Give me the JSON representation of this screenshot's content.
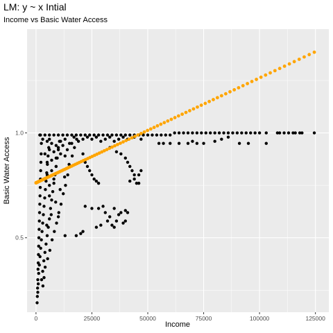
{
  "chart_data": {
    "type": "scatter",
    "title": "LM: y ~ x Intial",
    "subtitle": "Income vs Basic Water Access",
    "xlabel": "Income",
    "ylabel": "Basic Water Access",
    "xlim": [
      -4000,
      131000
    ],
    "ylim": [
      0.145,
      1.495
    ],
    "x_ticks": [
      0,
      25000,
      50000,
      75000,
      100000,
      125000
    ],
    "x_tick_labels": [
      "0",
      "25000",
      "50000",
      "75000",
      "100000",
      "125000"
    ],
    "y_ticks": [
      0.5,
      1.0
    ],
    "y_tick_labels": [
      "0.5",
      "1.0"
    ],
    "grid": true,
    "legend": "none",
    "colors": {
      "panel": "#ebebeb",
      "grid": "#ffffff",
      "observed": "#000000",
      "fitted": "#ffa500"
    },
    "series": [
      {
        "kind": "observed",
        "color": "#000000",
        "points": [
          [
            500,
            0.19
          ],
          [
            600,
            0.22
          ],
          [
            700,
            0.26
          ],
          [
            800,
            0.3
          ],
          [
            900,
            0.35
          ],
          [
            1000,
            0.38
          ],
          [
            1100,
            0.42
          ],
          [
            1200,
            0.46
          ],
          [
            1300,
            0.5
          ],
          [
            1400,
            0.54
          ],
          [
            1500,
            0.58
          ],
          [
            1600,
            0.62
          ],
          [
            1700,
            0.66
          ],
          [
            1800,
            0.7
          ],
          [
            1900,
            0.74
          ],
          [
            2000,
            0.78
          ],
          [
            2100,
            0.82
          ],
          [
            2200,
            0.86
          ],
          [
            2300,
            0.9
          ],
          [
            2400,
            0.95
          ],
          [
            800,
            0.24
          ],
          [
            1000,
            0.28
          ],
          [
            1200,
            0.33
          ],
          [
            1500,
            0.37
          ],
          [
            1800,
            0.41
          ],
          [
            2100,
            0.45
          ],
          [
            2400,
            0.49
          ],
          [
            2700,
            0.53
          ],
          [
            3000,
            0.57
          ],
          [
            3300,
            0.61
          ],
          [
            3600,
            0.65
          ],
          [
            3900,
            0.69
          ],
          [
            4200,
            0.73
          ],
          [
            4500,
            0.77
          ],
          [
            4800,
            0.81
          ],
          [
            5100,
            0.85
          ],
          [
            5400,
            0.89
          ],
          [
            5700,
            0.93
          ],
          [
            6000,
            0.97
          ],
          [
            1700,
            0.99
          ],
          [
            2500,
            0.3
          ],
          [
            3000,
            0.34
          ],
          [
            3500,
            0.39
          ],
          [
            4000,
            0.43
          ],
          [
            4500,
            0.47
          ],
          [
            5000,
            0.51
          ],
          [
            5500,
            0.55
          ],
          [
            6000,
            0.59
          ],
          [
            6500,
            0.64
          ],
          [
            7000,
            0.68
          ],
          [
            7500,
            0.72
          ],
          [
            8000,
            0.76
          ],
          [
            8500,
            0.8
          ],
          [
            9000,
            0.84
          ],
          [
            9500,
            0.88
          ],
          [
            10000,
            0.92
          ],
          [
            10500,
            0.96
          ],
          [
            3100,
            0.27
          ],
          [
            3600,
            0.31
          ],
          [
            4100,
            0.36
          ],
          [
            5200,
            0.4
          ],
          [
            6200,
            0.44
          ],
          [
            7200,
            0.49
          ],
          [
            8200,
            0.53
          ],
          [
            9200,
            0.57
          ],
          [
            10200,
            0.62
          ],
          [
            11200,
            0.66
          ],
          [
            12200,
            0.71
          ],
          [
            13200,
            0.75
          ],
          [
            14200,
            0.8
          ],
          [
            15200,
            0.84
          ],
          [
            16200,
            0.89
          ],
          [
            17200,
            0.93
          ],
          [
            18200,
            0.97
          ],
          [
            4800,
            0.56
          ],
          [
            6800,
            0.61
          ],
          [
            8800,
            0.67
          ],
          [
            10800,
            0.73
          ],
          [
            12800,
            0.79
          ],
          [
            14800,
            0.85
          ],
          [
            2000,
            0.99
          ],
          [
            4000,
            0.99
          ],
          [
            6000,
            0.99
          ],
          [
            8000,
            0.99
          ],
          [
            10000,
            0.99
          ],
          [
            12000,
            0.99
          ],
          [
            14000,
            0.99
          ],
          [
            16000,
            0.99
          ],
          [
            18000,
            0.99
          ],
          [
            20000,
            0.99
          ],
          [
            22000,
            0.99
          ],
          [
            24000,
            0.99
          ],
          [
            26000,
            0.99
          ],
          [
            28000,
            0.99
          ],
          [
            30000,
            0.99
          ],
          [
            32000,
            0.99
          ],
          [
            34000,
            0.99
          ],
          [
            36000,
            0.99
          ],
          [
            38000,
            0.99
          ],
          [
            40000,
            0.99
          ],
          [
            42000,
            0.99
          ],
          [
            44000,
            0.99
          ],
          [
            46000,
            0.99
          ],
          [
            48000,
            0.99
          ],
          [
            50000,
            0.99
          ],
          [
            52000,
            0.99
          ],
          [
            54000,
            0.99
          ],
          [
            56000,
            0.99
          ],
          [
            58000,
            0.99
          ],
          [
            60000,
            0.99
          ],
          [
            62000,
            1.0
          ],
          [
            64000,
            1.0
          ],
          [
            66000,
            1.0
          ],
          [
            68000,
            1.0
          ],
          [
            70000,
            1.0
          ],
          [
            72000,
            1.0
          ],
          [
            74000,
            1.0
          ],
          [
            76000,
            1.0
          ],
          [
            78000,
            1.0
          ],
          [
            80000,
            1.0
          ],
          [
            82000,
            1.0
          ],
          [
            84000,
            1.0
          ],
          [
            86000,
            1.0
          ],
          [
            88000,
            1.0
          ],
          [
            90000,
            1.0
          ],
          [
            92000,
            1.0
          ],
          [
            94000,
            1.0
          ],
          [
            96000,
            1.0
          ],
          [
            98000,
            1.0
          ],
          [
            100000,
            1.0
          ],
          [
            103000,
            1.0
          ],
          [
            108000,
            1.0
          ],
          [
            109000,
            1.0
          ],
          [
            111000,
            1.0
          ],
          [
            113000,
            1.0
          ],
          [
            115000,
            1.0
          ],
          [
            116000,
            1.0
          ],
          [
            118000,
            1.0
          ],
          [
            119000,
            1.0
          ],
          [
            124500,
            1.0
          ],
          [
            3000,
            0.97
          ],
          [
            5000,
            0.96
          ],
          [
            7000,
            0.95
          ],
          [
            9000,
            0.94
          ],
          [
            11000,
            0.96
          ],
          [
            13000,
            0.97
          ],
          [
            15000,
            0.95
          ],
          [
            17000,
            0.98
          ],
          [
            19000,
            0.96
          ],
          [
            21000,
            0.97
          ],
          [
            23000,
            0.98
          ],
          [
            25000,
            0.97
          ],
          [
            27000,
            0.98
          ],
          [
            29000,
            0.96
          ],
          [
            31000,
            0.97
          ],
          [
            33000,
            0.98
          ],
          [
            35000,
            0.96
          ],
          [
            37000,
            0.97
          ],
          [
            39000,
            0.98
          ],
          [
            41000,
            0.97
          ],
          [
            44000,
            0.98
          ],
          [
            47000,
            0.97
          ],
          [
            4000,
            0.9
          ],
          [
            6000,
            0.92
          ],
          [
            8000,
            0.91
          ],
          [
            10000,
            0.93
          ],
          [
            12000,
            0.94
          ],
          [
            14000,
            0.92
          ],
          [
            16000,
            0.95
          ],
          [
            5000,
            0.86
          ],
          [
            7000,
            0.87
          ],
          [
            9000,
            0.88
          ],
          [
            11000,
            0.9
          ],
          [
            13000,
            0.89
          ],
          [
            5000,
            0.8
          ],
          [
            7000,
            0.82
          ],
          [
            9000,
            0.84
          ],
          [
            6000,
            0.75
          ],
          [
            8000,
            0.78
          ],
          [
            6000,
            0.7
          ],
          [
            55000,
            0.95
          ],
          [
            57000,
            0.95
          ],
          [
            60000,
            0.95
          ],
          [
            64000,
            0.95
          ],
          [
            68000,
            0.95
          ],
          [
            70000,
            0.96
          ],
          [
            72000,
            0.95
          ],
          [
            75000,
            0.95
          ],
          [
            80000,
            0.96
          ],
          [
            83000,
            0.97
          ],
          [
            86000,
            0.98
          ],
          [
            91000,
            0.95
          ],
          [
            95000,
            0.95
          ],
          [
            103000,
            0.95
          ],
          [
            33000,
            0.93
          ],
          [
            36000,
            0.91
          ],
          [
            38000,
            0.9
          ],
          [
            40000,
            0.88
          ],
          [
            41000,
            0.86
          ],
          [
            42000,
            0.84
          ],
          [
            43000,
            0.82
          ],
          [
            44000,
            0.8
          ],
          [
            44000,
            0.78
          ],
          [
            45000,
            0.76
          ],
          [
            46000,
            0.76
          ],
          [
            46000,
            0.8
          ],
          [
            47000,
            0.82
          ],
          [
            42000,
            0.77
          ],
          [
            21000,
            0.9
          ],
          [
            22000,
            0.86
          ],
          [
            23000,
            0.84
          ],
          [
            24000,
            0.82
          ],
          [
            25000,
            0.8
          ],
          [
            26000,
            0.78
          ],
          [
            27000,
            0.77
          ],
          [
            28000,
            0.76
          ],
          [
            13000,
            0.51
          ],
          [
            18000,
            0.51
          ],
          [
            20000,
            0.52
          ],
          [
            21000,
            0.53
          ],
          [
            22000,
            0.65
          ],
          [
            25000,
            0.64
          ],
          [
            27000,
            0.55
          ],
          [
            29000,
            0.56
          ],
          [
            31000,
            0.62
          ],
          [
            32000,
            0.58
          ],
          [
            33000,
            0.6
          ],
          [
            34000,
            0.56
          ],
          [
            35000,
            0.55
          ],
          [
            36000,
            0.58
          ],
          [
            37000,
            0.61
          ],
          [
            39000,
            0.57
          ],
          [
            40000,
            0.63
          ],
          [
            41000,
            0.62
          ],
          [
            30000,
            0.65
          ],
          [
            35000,
            0.64
          ],
          [
            38000,
            0.62
          ],
          [
            28000,
            0.64
          ],
          [
            40000,
            0.58
          ],
          [
            10000,
            0.6
          ]
        ]
      },
      {
        "kind": "fitted",
        "color": "#ffa500",
        "line": {
          "x": [
            0,
            124500
          ],
          "y": [
            0.762,
            1.385
          ]
        },
        "n_points": 110
      }
    ]
  }
}
